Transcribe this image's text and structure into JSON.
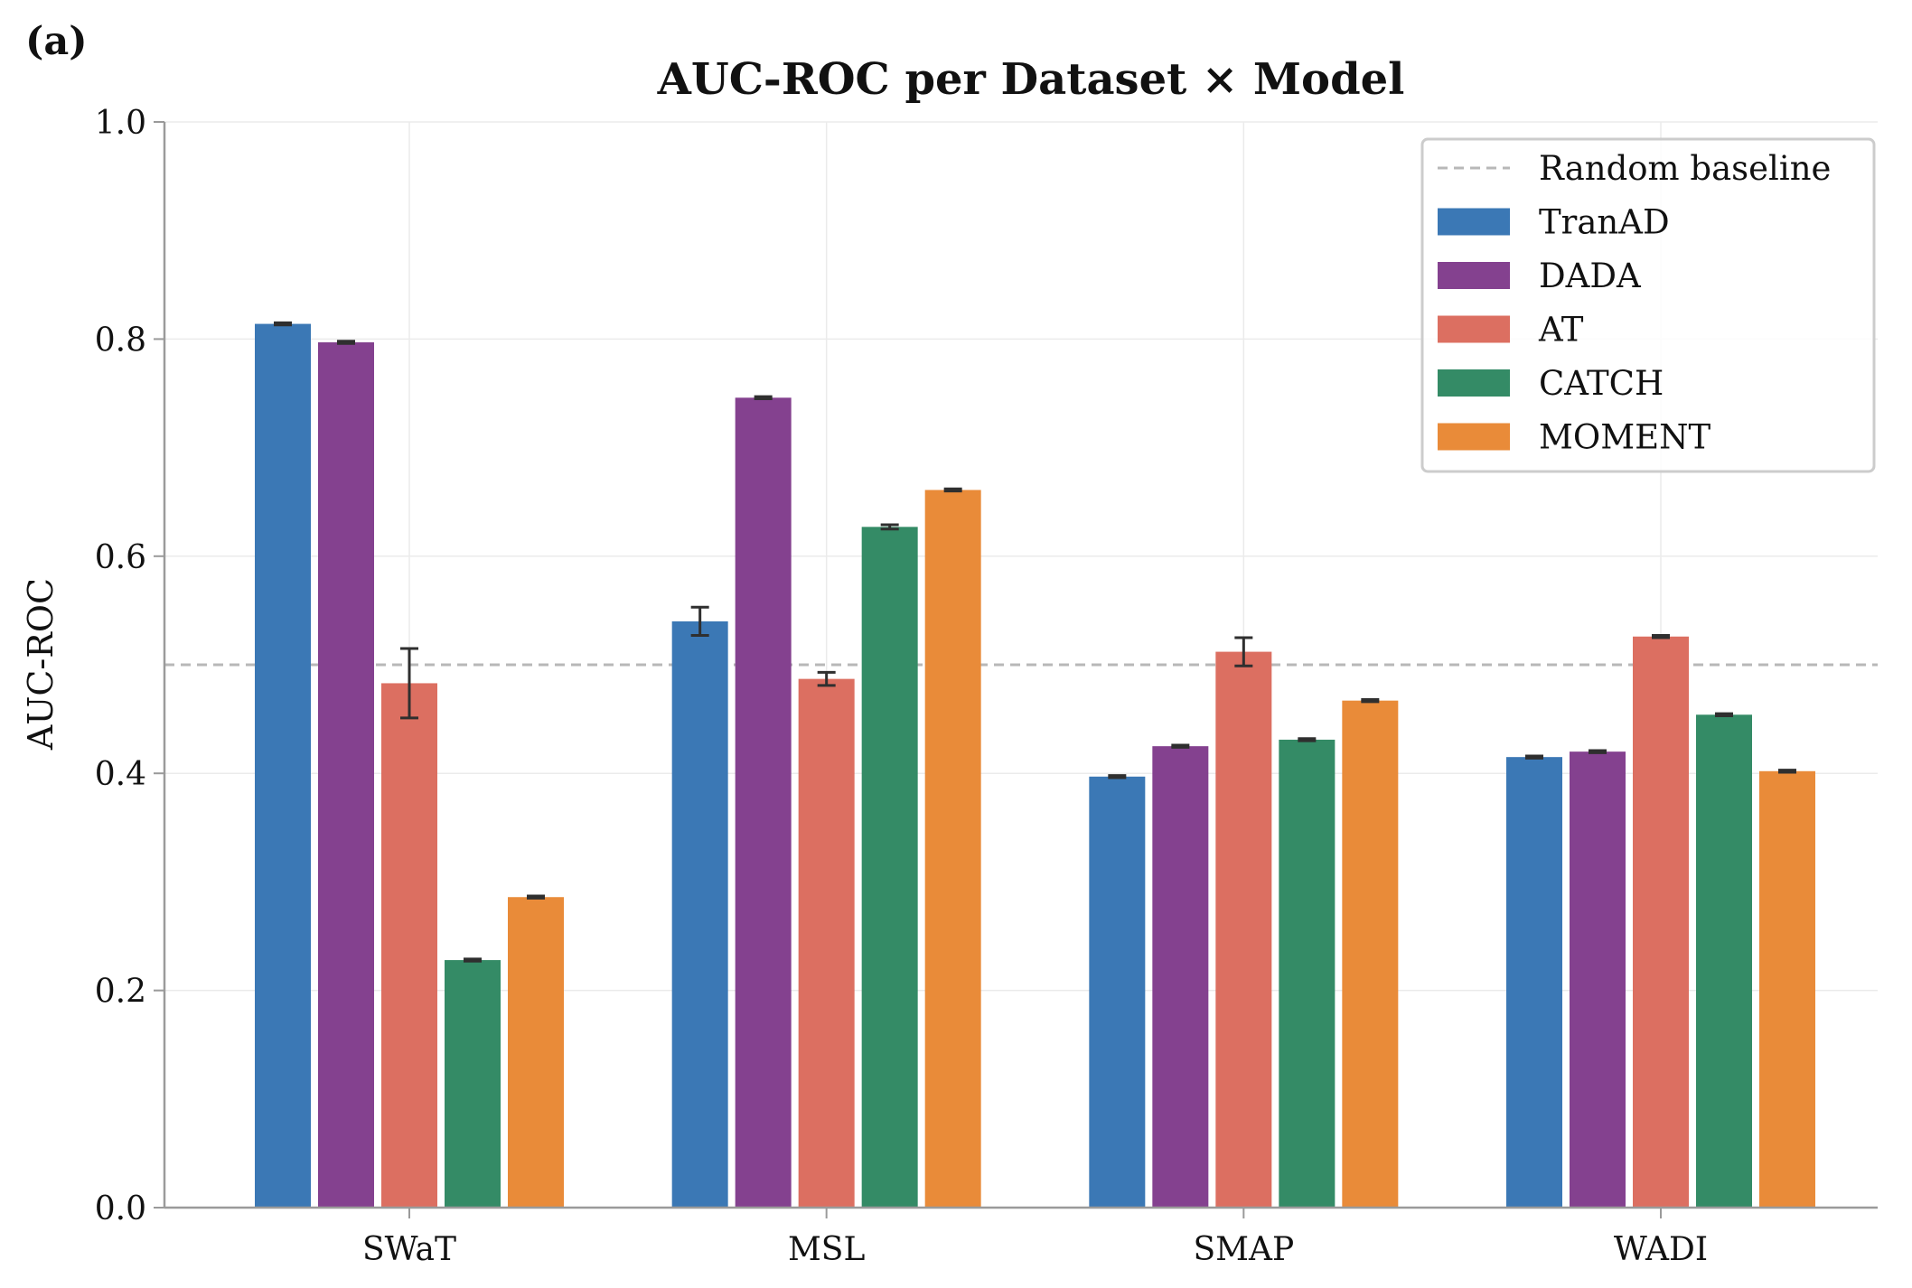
{
  "panel_label": "(a)",
  "chart_data": {
    "type": "bar",
    "title": "AUC-ROC per Dataset × Model",
    "xlabel": "",
    "ylabel": "AUC-ROC",
    "ylim": [
      0,
      1.0
    ],
    "yticks": [
      "0.0",
      "0.2",
      "0.4",
      "0.6",
      "0.8",
      "1.0"
    ],
    "grid": true,
    "legend_position": "top-right",
    "categories": [
      "SWaT",
      "MSL",
      "SMAP",
      "WADI"
    ],
    "baseline": {
      "name": "Random baseline",
      "value": 0.5,
      "color": "#b8b8b8"
    },
    "series": [
      {
        "name": "TranAD",
        "color": "#3b78b5",
        "values": [
          0.814,
          0.54,
          0.397,
          0.415
        ],
        "errors": [
          0.001,
          0.013,
          0.001,
          0.001
        ]
      },
      {
        "name": "DADA",
        "color": "#84418f",
        "values": [
          0.797,
          0.746,
          0.425,
          0.42
        ],
        "errors": [
          0.001,
          0.001,
          0.001,
          0.001
        ]
      },
      {
        "name": "AT",
        "color": "#dc6f61",
        "values": [
          0.483,
          0.487,
          0.512,
          0.526
        ],
        "errors": [
          0.032,
          0.006,
          0.013,
          0.001
        ]
      },
      {
        "name": "CATCH",
        "color": "#348b66",
        "values": [
          0.228,
          0.627,
          0.431,
          0.454
        ],
        "errors": [
          0.001,
          0.002,
          0.001,
          0.001
        ]
      },
      {
        "name": "MOMENT",
        "color": "#e98b39",
        "values": [
          0.286,
          0.661,
          0.467,
          0.402
        ],
        "errors": [
          0.001,
          0.001,
          0.001,
          0.001
        ]
      }
    ]
  }
}
